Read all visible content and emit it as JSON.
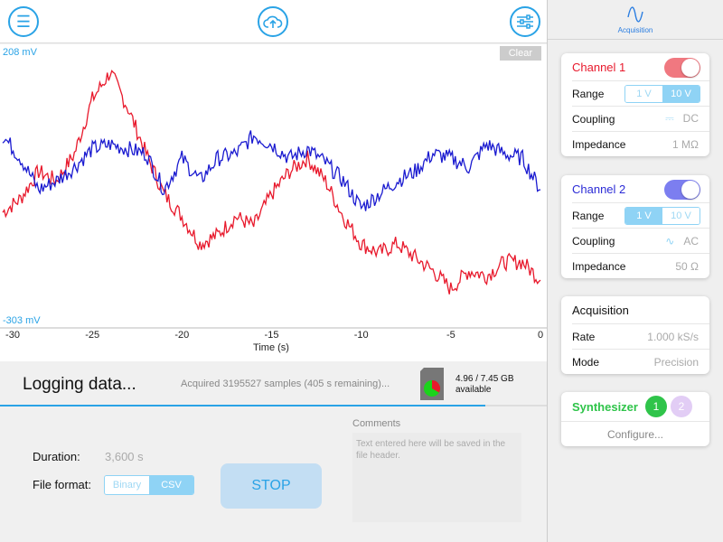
{
  "toolbar": {
    "menu_icon": "menu-icon",
    "upload_icon": "cloud-upload-icon",
    "settings_icon": "sliders-icon"
  },
  "plot": {
    "y_max_label": "208 mV",
    "y_min_label": "-303 mV",
    "clear_label": "Clear"
  },
  "chart_data": {
    "type": "line",
    "xlabel": "Time (s)",
    "ylabel": "",
    "xlim": [
      -30,
      0
    ],
    "ylim": [
      -303,
      208
    ],
    "x_ticks": [
      "-30",
      "-25",
      "-20",
      "-15",
      "-10",
      "-5",
      "0"
    ],
    "x": [
      -30,
      -29,
      -28,
      -27,
      -26,
      -25,
      -24,
      -23,
      -22,
      -21,
      -20,
      -19,
      -18,
      -17,
      -16,
      -15,
      -14,
      -13,
      -12,
      -11,
      -10,
      -9,
      -8,
      -7,
      -6,
      -5,
      -4,
      -3,
      -2,
      -1,
      0
    ],
    "series": [
      {
        "name": "Channel 1",
        "color": "#e8192c",
        "values": [
          -95,
          -70,
          -21,
          -38,
          11,
          110,
          159,
          93,
          11,
          -62,
          -103,
          -152,
          -136,
          -103,
          -120,
          -62,
          -21,
          3,
          -38,
          -103,
          -152,
          -169,
          -152,
          -177,
          -201,
          -234,
          -201,
          -210,
          -185,
          -185,
          -218
        ]
      },
      {
        "name": "Channel 2",
        "color": "#1a1ad0",
        "values": [
          44,
          3,
          -54,
          -38,
          -13,
          20,
          28,
          20,
          11,
          -54,
          3,
          -38,
          3,
          11,
          44,
          28,
          3,
          20,
          -5,
          -38,
          -87,
          -62,
          -38,
          -21,
          11,
          3,
          -13,
          28,
          11,
          3,
          -54
        ]
      }
    ]
  },
  "status": {
    "title": "Logging data...",
    "detail": "Acquired 3195527 samples (405 s remaining)...",
    "storage": "4.96 / 7.45 GB",
    "storage_sub": "available",
    "storage_used_fraction": 0.334,
    "progress": 0.887
  },
  "form": {
    "duration_label": "Duration:",
    "duration_value": "3,600 s",
    "format_label": "File format:",
    "format_options": [
      "Binary",
      "CSV"
    ],
    "format_selected": "CSV",
    "stop_label": "STOP",
    "comments_label": "Comments",
    "comments_placeholder": "Text entered here will be saved in the file header."
  },
  "side": {
    "tab_label": "Acquisition",
    "ch1": {
      "title": "Channel 1",
      "color": "#e8192c",
      "enabled": true,
      "range_label": "Range",
      "range_options": [
        "1 V",
        "10 V"
      ],
      "range_selected": "10 V",
      "coupling_label": "Coupling",
      "coupling_value": "DC",
      "impedance_label": "Impedance",
      "impedance_value": "1 MΩ"
    },
    "ch2": {
      "title": "Channel 2",
      "color": "#2b2bd6",
      "enabled": true,
      "range_label": "Range",
      "range_options": [
        "1 V",
        "10 V"
      ],
      "range_selected": "1 V",
      "coupling_label": "Coupling",
      "coupling_value": "AC",
      "impedance_label": "Impedance",
      "impedance_value": "50 Ω"
    },
    "acq": {
      "title": "Acquisition",
      "rate_label": "Rate",
      "rate_value": "1.000 kS/s",
      "mode_label": "Mode",
      "mode_value": "Precision"
    },
    "synth": {
      "title": "Synthesizer",
      "ch1": "1",
      "ch2": "2",
      "configure": "Configure..."
    }
  }
}
